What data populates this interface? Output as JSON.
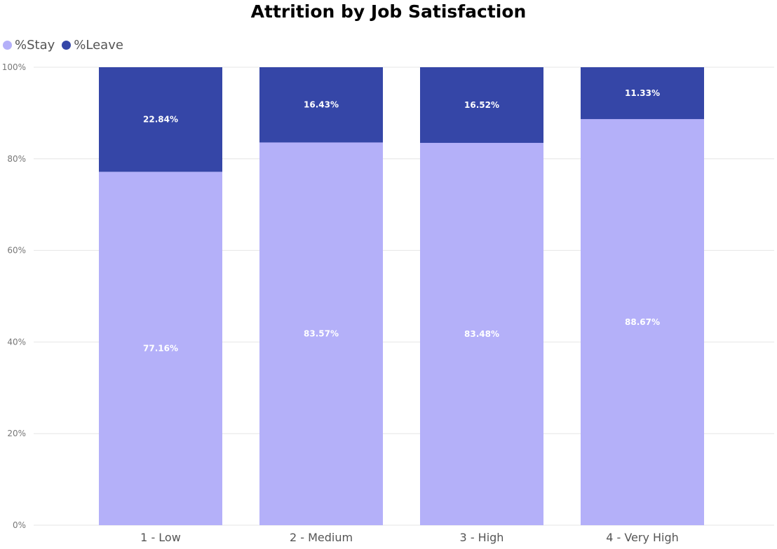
{
  "chart_data": {
    "type": "bar",
    "stacked": true,
    "title": "Attrition by Job Satisfaction",
    "categories": [
      "1 - Low",
      "2 - Medium",
      "3 - High",
      "4 - Very High"
    ],
    "series": [
      {
        "name": "%Stay",
        "values": [
          77.16,
          83.57,
          83.48,
          88.67
        ],
        "labels": [
          "77.16%",
          "83.57%",
          "83.48%",
          "88.67%"
        ],
        "color": "#b4b0f9"
      },
      {
        "name": "%Leave",
        "values": [
          22.84,
          16.43,
          16.52,
          11.33
        ],
        "labels": [
          "22.84%",
          "16.43%",
          "16.52%",
          "11.33%"
        ],
        "color": "#3546a7"
      }
    ],
    "ylim": [
      0,
      100
    ],
    "yticks": [
      0,
      20,
      40,
      60,
      80,
      100
    ],
    "ytick_labels": [
      "0%",
      "20%",
      "40%",
      "60%",
      "80%",
      "100%"
    ],
    "grid": true,
    "legend_position": "top-left"
  }
}
